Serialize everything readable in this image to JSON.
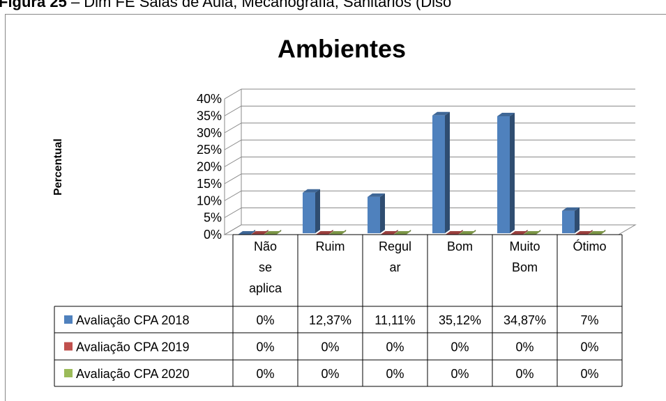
{
  "caption": {
    "label": "Figura 25",
    "text": "– Dim FE Salas de Aula, Mecanografia, Sanitários (Diso"
  },
  "chart_data": {
    "type": "bar3d",
    "title": "Ambientes",
    "y_label": "Percentual",
    "categories": [
      "Não se aplica",
      "Ruim",
      "Regular",
      "Bom",
      "Muito Bom",
      "Ótimo"
    ],
    "series": [
      {
        "name": "Avaliação CPA 2018",
        "color": "#4f81bd",
        "values": [
          0,
          12.37,
          11.11,
          35.12,
          34.87,
          7
        ],
        "value_labels": [
          "0%",
          "12,37%",
          "11,11%",
          "35,12%",
          "34,87%",
          "7%"
        ]
      },
      {
        "name": "Avaliação CPA 2019",
        "color": "#c0504d",
        "values": [
          0,
          0,
          0,
          0,
          0,
          0
        ],
        "value_labels": [
          "0%",
          "0%",
          "0%",
          "0%",
          "0%",
          "0%"
        ]
      },
      {
        "name": "Avaliação CPA 2020",
        "color": "#9bbb59",
        "values": [
          0,
          0,
          0,
          0,
          0,
          0
        ],
        "value_labels": [
          "0%",
          "0%",
          "0%",
          "0%",
          "0%",
          "0%"
        ]
      }
    ],
    "ylim": [
      0,
      40
    ],
    "yticks": [
      {
        "value": 0,
        "label": "0%"
      },
      {
        "value": 5,
        "label": "5%"
      },
      {
        "value": 10,
        "label": "10%"
      },
      {
        "value": 15,
        "label": "15%"
      },
      {
        "value": 20,
        "label": "20%"
      },
      {
        "value": 25,
        "label": "25%"
      },
      {
        "value": 30,
        "label": "30%"
      },
      {
        "value": 35,
        "label": "35%"
      },
      {
        "value": 40,
        "label": "40%"
      }
    ],
    "grid": true
  }
}
